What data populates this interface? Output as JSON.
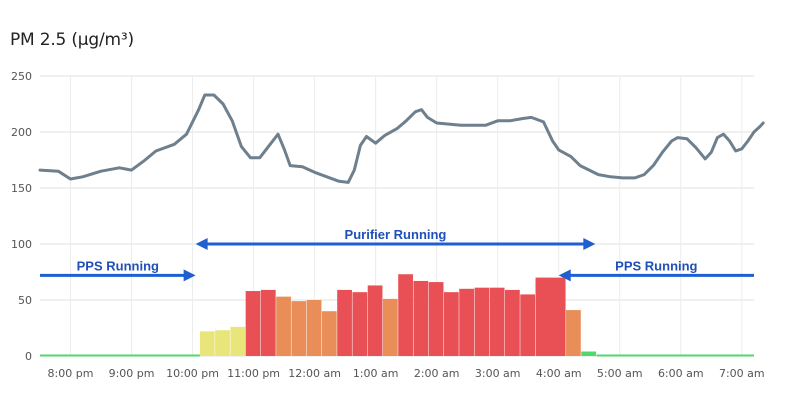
{
  "title": "PM 2.5 (µg/m³)",
  "chart_data": {
    "type": "bar",
    "title": "PM 2.5 (µg/m³)",
    "ylim": [
      0,
      250
    ],
    "yticks": [
      0,
      50,
      100,
      150,
      200,
      250
    ],
    "xlim": [
      19.5,
      31.2
    ],
    "xticks": [
      {
        "v": 20,
        "label": "8:00 pm"
      },
      {
        "v": 21,
        "label": "9:00 pm"
      },
      {
        "v": 22,
        "label": "10:00 pm"
      },
      {
        "v": 23,
        "label": "11:00 pm"
      },
      {
        "v": 24,
        "label": "12:00 am"
      },
      {
        "v": 25,
        "label": "1:00 am"
      },
      {
        "v": 26,
        "label": "2:00 am"
      },
      {
        "v": 27,
        "label": "3:00 am"
      },
      {
        "v": 28,
        "label": "4:00 am"
      },
      {
        "v": 29,
        "label": "5:00 am"
      },
      {
        "v": 30,
        "label": "6:00 am"
      },
      {
        "v": 31,
        "label": "7:00 am"
      }
    ],
    "grid": true,
    "bars": [
      {
        "t0": 22.12,
        "t1": 22.37,
        "v": 22,
        "color": "#e8e57a"
      },
      {
        "t0": 22.37,
        "t1": 22.62,
        "v": 23,
        "color": "#e8e57a"
      },
      {
        "t0": 22.62,
        "t1": 22.87,
        "v": 26,
        "color": "#e8e57a"
      },
      {
        "t0": 22.87,
        "t1": 23.12,
        "v": 58,
        "color": "#e85055"
      },
      {
        "t0": 23.12,
        "t1": 23.37,
        "v": 59,
        "color": "#e85055"
      },
      {
        "t0": 23.37,
        "t1": 23.62,
        "v": 53,
        "color": "#e98e58"
      },
      {
        "t0": 23.62,
        "t1": 23.87,
        "v": 49,
        "color": "#e98e58"
      },
      {
        "t0": 23.87,
        "t1": 24.12,
        "v": 50,
        "color": "#e98e58"
      },
      {
        "t0": 24.12,
        "t1": 24.37,
        "v": 40,
        "color": "#e98e58"
      },
      {
        "t0": 24.37,
        "t1": 24.62,
        "v": 59,
        "color": "#e85055"
      },
      {
        "t0": 24.62,
        "t1": 24.87,
        "v": 57,
        "color": "#e85055"
      },
      {
        "t0": 24.87,
        "t1": 25.12,
        "v": 63,
        "color": "#e85055"
      },
      {
        "t0": 25.12,
        "t1": 25.37,
        "v": 51,
        "color": "#e98e58"
      },
      {
        "t0": 25.37,
        "t1": 25.62,
        "v": 73,
        "color": "#e85055"
      },
      {
        "t0": 25.62,
        "t1": 25.87,
        "v": 67,
        "color": "#e85055"
      },
      {
        "t0": 25.87,
        "t1": 26.12,
        "v": 66,
        "color": "#e85055"
      },
      {
        "t0": 26.12,
        "t1": 26.37,
        "v": 57,
        "color": "#e85055"
      },
      {
        "t0": 26.37,
        "t1": 26.62,
        "v": 60,
        "color": "#e85055"
      },
      {
        "t0": 26.62,
        "t1": 26.87,
        "v": 61,
        "color": "#e85055"
      },
      {
        "t0": 26.87,
        "t1": 27.12,
        "v": 61,
        "color": "#e85055"
      },
      {
        "t0": 27.12,
        "t1": 27.37,
        "v": 59,
        "color": "#e85055"
      },
      {
        "t0": 27.37,
        "t1": 27.62,
        "v": 55,
        "color": "#e85055"
      },
      {
        "t0": 27.62,
        "t1": 28.12,
        "v": 70,
        "color": "#e85055"
      },
      {
        "t0": 28.12,
        "t1": 28.37,
        "v": 41,
        "color": "#e98e58"
      },
      {
        "t0": 28.37,
        "t1": 28.62,
        "v": 4,
        "color": "#4fd96a"
      }
    ],
    "baseline": [
      {
        "t0": 19.5,
        "t1": 22.12,
        "v": 1,
        "color": "#4fd96a"
      },
      {
        "t0": 28.62,
        "t1": 31.2,
        "v": 1,
        "color": "#4fd96a"
      }
    ],
    "series": [
      {
        "color": "#6e7f8d",
        "points": [
          [
            19.5,
            166
          ],
          [
            19.8,
            165
          ],
          [
            20.0,
            158
          ],
          [
            20.2,
            160
          ],
          [
            20.5,
            165
          ],
          [
            20.8,
            168
          ],
          [
            21.0,
            166
          ],
          [
            21.2,
            174
          ],
          [
            21.4,
            183
          ],
          [
            21.7,
            189
          ],
          [
            21.9,
            198
          ],
          [
            22.1,
            220
          ],
          [
            22.2,
            233
          ],
          [
            22.35,
            233
          ],
          [
            22.5,
            225
          ],
          [
            22.65,
            210
          ],
          [
            22.8,
            187
          ],
          [
            22.95,
            177
          ],
          [
            23.1,
            177
          ],
          [
            23.3,
            191
          ],
          [
            23.4,
            198
          ],
          [
            23.5,
            185
          ],
          [
            23.6,
            170
          ],
          [
            23.8,
            169
          ],
          [
            24.0,
            164
          ],
          [
            24.2,
            160
          ],
          [
            24.4,
            156
          ],
          [
            24.55,
            155
          ],
          [
            24.65,
            166
          ],
          [
            24.75,
            188
          ],
          [
            24.85,
            196
          ],
          [
            25.0,
            190
          ],
          [
            25.15,
            197
          ],
          [
            25.35,
            203
          ],
          [
            25.5,
            210
          ],
          [
            25.65,
            218
          ],
          [
            25.75,
            220
          ],
          [
            25.85,
            213
          ],
          [
            26.0,
            208
          ],
          [
            26.4,
            206
          ],
          [
            26.8,
            206
          ],
          [
            27.0,
            210
          ],
          [
            27.2,
            210
          ],
          [
            27.4,
            212
          ],
          [
            27.55,
            213
          ],
          [
            27.75,
            209
          ],
          [
            27.9,
            192
          ],
          [
            28.0,
            184
          ],
          [
            28.2,
            178
          ],
          [
            28.35,
            170
          ],
          [
            28.5,
            166
          ],
          [
            28.65,
            162
          ],
          [
            28.85,
            160
          ],
          [
            29.05,
            159
          ],
          [
            29.25,
            159
          ],
          [
            29.4,
            162
          ],
          [
            29.55,
            170
          ],
          [
            29.7,
            182
          ],
          [
            29.85,
            192
          ],
          [
            29.95,
            195
          ],
          [
            30.1,
            194
          ],
          [
            30.25,
            186
          ],
          [
            30.4,
            176
          ],
          [
            30.5,
            182
          ],
          [
            30.6,
            195
          ],
          [
            30.7,
            198
          ],
          [
            30.8,
            192
          ],
          [
            30.9,
            183
          ],
          [
            31.0,
            185
          ],
          [
            31.1,
            192
          ],
          [
            31.2,
            200
          ],
          [
            31.3,
            205
          ],
          [
            31.35,
            208
          ]
        ]
      }
    ],
    "annotations": [
      {
        "label": "Purifier Running",
        "from": 22.05,
        "to": 28.6,
        "y": 100,
        "direction": "both"
      },
      {
        "label": "PPS Running",
        "from": 19.5,
        "to": 22.05,
        "y": 72,
        "direction": "right"
      },
      {
        "label": "PPS Running",
        "from": 28.0,
        "to": 31.2,
        "y": 72,
        "direction": "left"
      }
    ]
  }
}
